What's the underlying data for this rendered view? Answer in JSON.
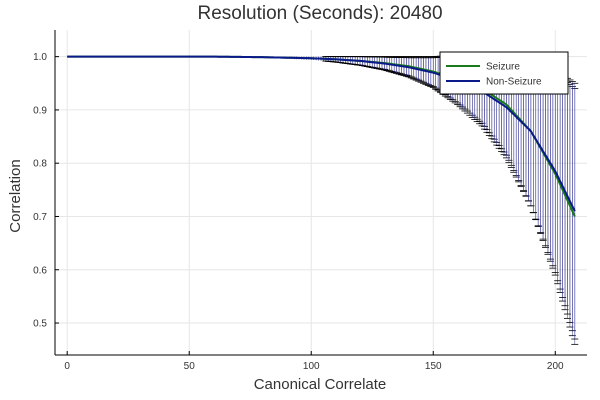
{
  "chart_data": {
    "type": "line",
    "title": "Resolution (Seconds): 20480",
    "xlabel": "Canonical Correlate",
    "ylabel": "Correlation",
    "xlim": [
      -5,
      213
    ],
    "ylim": [
      0.44,
      1.05
    ],
    "xticks": [
      0,
      50,
      100,
      150,
      200
    ],
    "yticks": [
      0.5,
      0.6,
      0.7,
      0.8,
      0.9,
      1.0
    ],
    "x_count": 209,
    "grid": true,
    "legend": "top-right",
    "colors": {
      "seizure": "#1a7a1a",
      "non_seizure": "#0b1a8a",
      "errorbar": "#000000",
      "errorfill": "#b8b8ee"
    },
    "series": [
      {
        "name": "Seizure",
        "x": [
          0,
          20,
          40,
          60,
          80,
          100,
          110,
          120,
          130,
          140,
          150,
          160,
          170,
          180,
          190,
          200,
          208
        ],
        "values": [
          1.0,
          1.0,
          1.0,
          1.0,
          0.999,
          0.997,
          0.995,
          0.992,
          0.988,
          0.982,
          0.972,
          0.958,
          0.94,
          0.91,
          0.86,
          0.78,
          0.7
        ],
        "error": [
          0.0,
          0.0,
          0.0,
          0.0005,
          0.001,
          0.003,
          0.005,
          0.008,
          0.012,
          0.018,
          0.028,
          0.045,
          0.065,
          0.095,
          0.14,
          0.19,
          0.24
        ]
      },
      {
        "name": "Non-Seizure",
        "x": [
          0,
          20,
          40,
          60,
          80,
          100,
          110,
          120,
          130,
          140,
          150,
          160,
          170,
          180,
          190,
          200,
          208
        ],
        "values": [
          1.0,
          1.0,
          1.0,
          1.0,
          0.999,
          0.997,
          0.995,
          0.992,
          0.987,
          0.98,
          0.97,
          0.955,
          0.935,
          0.905,
          0.86,
          0.785,
          0.71
        ],
        "error": [
          0.0,
          0.0,
          0.0,
          0.0005,
          0.001,
          0.003,
          0.005,
          0.008,
          0.012,
          0.018,
          0.028,
          0.045,
          0.065,
          0.095,
          0.14,
          0.19,
          0.24
        ]
      }
    ]
  }
}
